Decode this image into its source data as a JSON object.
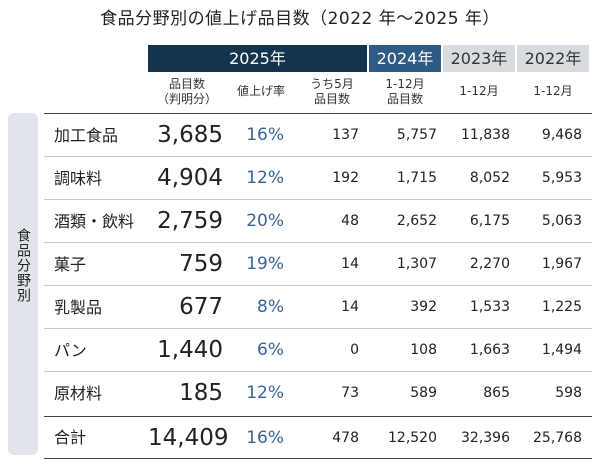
{
  "title": "食品分野別の値上げ品目数（2022 年〜2025 年）",
  "year_headers": {
    "y2025": "2025年",
    "y2024": "2024年",
    "y2023": "2023年",
    "y2022": "2022年"
  },
  "sub_headers": {
    "items_line1": "品目数",
    "items_line2": "（判明分）",
    "rate": "値上げ率",
    "may_line1": "うち5月",
    "may_line2": "品目数",
    "y2024_line1": "1-12月",
    "y2024_line2": "品目数",
    "y2023": "1-12月",
    "y2022": "1-12月"
  },
  "side_label": "食品分野別",
  "rows": [
    {
      "name": "加工食品",
      "items": "3,685",
      "rate": "16%",
      "may": "137",
      "y2024": "5,757",
      "y2023": "11,838",
      "y2022": "9,468"
    },
    {
      "name": "調味料",
      "items": "4,904",
      "rate": "12%",
      "may": "192",
      "y2024": "1,715",
      "y2023": "8,052",
      "y2022": "5,953"
    },
    {
      "name": "酒類・飲料",
      "items": "2,759",
      "rate": "20%",
      "may": "48",
      "y2024": "2,652",
      "y2023": "6,175",
      "y2022": "5,063"
    },
    {
      "name": "菓子",
      "items": "759",
      "rate": "19%",
      "may": "14",
      "y2024": "1,307",
      "y2023": "2,270",
      "y2022": "1,967"
    },
    {
      "name": "乳製品",
      "items": "677",
      "rate": "8%",
      "may": "14",
      "y2024": "392",
      "y2023": "1,533",
      "y2022": "1,225"
    },
    {
      "name": "パン",
      "items": "1,440",
      "rate": "6%",
      "may": "0",
      "y2024": "108",
      "y2023": "1,663",
      "y2022": "1,494"
    },
    {
      "name": "原材料",
      "items": "185",
      "rate": "12%",
      "may": "73",
      "y2024": "589",
      "y2023": "865",
      "y2022": "598"
    }
  ],
  "total": {
    "name": "合計",
    "items": "14,409",
    "rate": "16%",
    "may": "478",
    "y2024": "12,520",
    "y2023": "32,396",
    "y2022": "25,768"
  },
  "colors": {
    "header_2025": "#14344e",
    "header_2024": "#2e5a86",
    "header_past": "#d8dbe0",
    "rate_text": "#3a6494",
    "side_panel": "#e1e4ea"
  }
}
